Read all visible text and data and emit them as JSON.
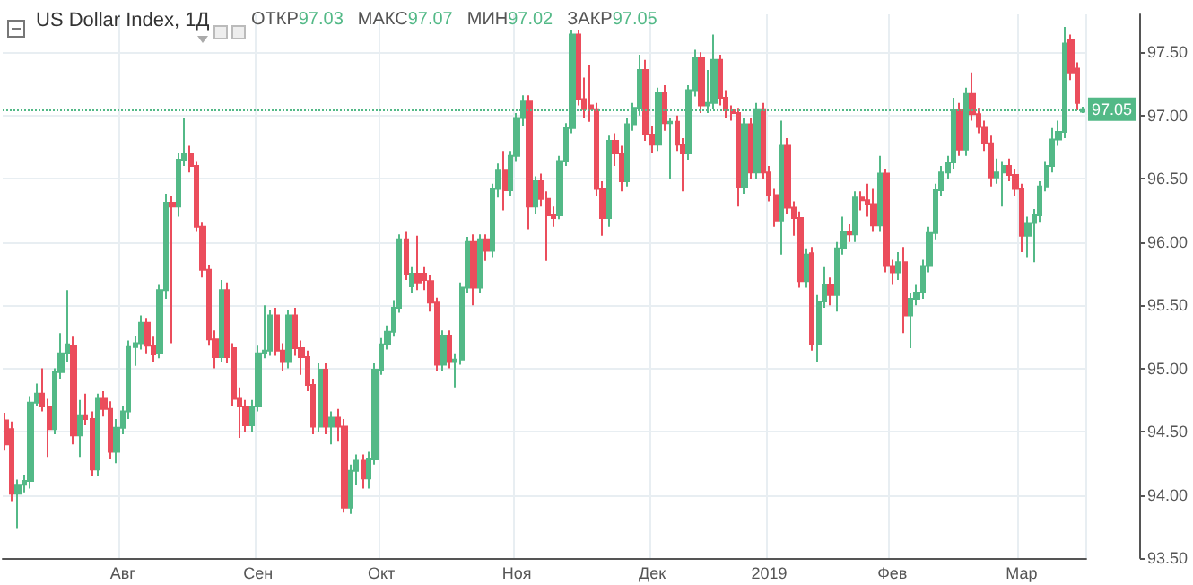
{
  "chart_data": {
    "type": "candlestick",
    "title": "US Dollar Index, 1Д",
    "annotations": [
      "ОТКР",
      "97.03",
      "МАКС",
      "97.07",
      "МИН",
      "97.02",
      "ЗАКР",
      "97.05"
    ],
    "categories": [
      null,
      null,
      null,
      null,
      null,
      null,
      null,
      null,
      null,
      null,
      null,
      null,
      null,
      null,
      null,
      null,
      null,
      null,
      null,
      "Авг",
      null,
      null,
      null,
      null,
      null,
      null,
      null,
      null,
      null,
      null,
      null,
      null,
      null,
      null,
      null,
      null,
      null,
      null,
      null,
      null,
      null,
      "Сен",
      null,
      null,
      null,
      null,
      null,
      null,
      null,
      null,
      null,
      null,
      null,
      null,
      null,
      null,
      null,
      null,
      null,
      null,
      null,
      "Окт",
      null,
      null,
      null,
      null,
      null,
      null,
      null,
      null,
      null,
      null,
      null,
      null,
      null,
      null,
      null,
      null,
      null,
      null,
      null,
      null,
      null,
      "Ноя",
      null,
      null,
      null,
      null,
      null,
      null,
      null,
      null,
      null,
      null,
      null,
      null,
      null,
      null,
      null,
      null,
      null,
      null,
      null,
      null,
      null,
      "Дек",
      null,
      null,
      null,
      null,
      null,
      null,
      null,
      null,
      null,
      null,
      null,
      null,
      null,
      null,
      null,
      null,
      null,
      null,
      "2019",
      null,
      null,
      null,
      null,
      null,
      null,
      null,
      null,
      null,
      null,
      null,
      null,
      null,
      null,
      null,
      null,
      null,
      null,
      null,
      "Фев",
      null,
      null,
      null,
      null,
      null,
      null,
      null,
      null,
      null,
      null,
      null,
      null,
      null,
      null,
      null,
      null,
      null,
      null,
      null,
      null,
      "Мар",
      null,
      null,
      null,
      null,
      null,
      null,
      null,
      null,
      null,
      null
    ],
    "colors": [
      "#eb4d5c",
      "#eb4d5c",
      "#53b987",
      "#53b987",
      "#53b987",
      "#53b987",
      "#eb4d5c",
      "#eb4d5c",
      "#53b987",
      "#53b987",
      "#53b987",
      "#eb4d5c",
      "#53b987",
      "#eb4d5c",
      "#eb4d5c",
      "#53b987",
      "#eb4d5c",
      "#eb4d5c",
      "#53b987",
      "#53b987",
      "#53b987",
      "#53b987",
      "#53b987",
      "#eb4d5c",
      "#eb4d5c",
      "#53b987",
      "#53b987",
      "#eb4d5c",
      "#53b987",
      "#53b987",
      "#eb4d5c",
      "#eb4d5c",
      "#eb4d5c",
      "#eb4d5c",
      "#eb4d5c",
      "#53b987",
      "#eb4d5c",
      "#eb4d5c",
      "#eb4d5c",
      "#eb4d5c",
      "#53b987",
      "#53b987",
      "#53b987",
      "#53b987",
      "#eb4d5c",
      "#eb4d5c",
      "#53b987",
      "#eb4d5c",
      "#eb4d5c",
      "#eb4d5c",
      "#eb4d5c",
      "#53b987",
      "#eb4d5c",
      "#53b987",
      "#eb4d5c",
      "#eb4d5c",
      "#53b987",
      "#53b987",
      "#eb4d5c",
      "#53b987",
      "#53b987",
      "#53b987",
      "#53b987",
      "#53b987",
      "#53b987",
      "#eb4d5c",
      "#53b987",
      "#eb4d5c",
      "#eb4d5c",
      "#eb4d5c",
      "#eb4d5c",
      "#53b987",
      "#eb4d5c",
      "#53b987",
      "#53b987",
      "#53b987",
      "#eb4d5c",
      "#53b987",
      "#eb4d5c",
      "#53b987",
      "#53b987",
      "#eb4d5c",
      "#53b987",
      "#53b987",
      "#53b987",
      "#eb4d5c",
      "#53b987",
      "#eb4d5c",
      "#eb4d5c",
      "#eb4d5c",
      "#53b987",
      "#53b987",
      "#53b987",
      "#eb4d5c",
      "#eb4d5c",
      "#eb4d5c",
      "#eb4d5c",
      "#eb4d5c",
      "#53b987",
      "#eb4d5c",
      "#eb4d5c",
      "#53b987",
      "#53b987",
      "#53b987",
      "#eb4d5c",
      "#eb4d5c",
      "#53b987",
      "#eb4d5c",
      "#53b987",
      "#eb4d5c",
      "#eb4d5c",
      "#53b987",
      "#53b987",
      "#eb4d5c",
      "#53b987",
      "#53b987",
      "#eb4d5c",
      "#eb4d5c",
      "#eb4d5c",
      "#eb4d5c",
      "#53b987",
      "#eb4d5c",
      "#53b987",
      "#eb4d5c",
      "#eb4d5c",
      "#eb4d5c",
      "#53b987",
      "#eb4d5c",
      "#eb4d5c",
      "#eb4d5c",
      "#53b987",
      "#eb4d5c",
      "#53b987",
      "#53b987",
      "#eb4d5c",
      "#53b987",
      "#53b987",
      "#eb4d5c",
      "#53b987",
      "#eb4d5c",
      "#eb4d5c",
      "#eb4d5c",
      "#53b987",
      "#eb4d5c",
      "#eb4d5c",
      "#53b987",
      "#eb4d5c",
      "#53b987",
      "#53b987",
      "#53b987",
      "#53b987",
      "#53b987",
      "#53b987",
      "#53b987",
      "#53b987",
      "#eb4d5c",
      "#53b987",
      "#eb4d5c",
      "#eb4d5c",
      "#eb4d5c",
      "#eb4d5c",
      "#53b987",
      "#53b987",
      "#eb4d5c",
      "#eb4d5c",
      "#eb4d5c",
      "#53b987",
      "#53b987",
      "#53b987",
      "#53b987",
      "#53b987",
      "#53b987",
      "#53b987",
      "#eb4d5c",
      "#eb4d5c",
      "#53b987"
    ],
    "ohlc": [
      [
        94.59,
        94.65,
        94.35,
        94.4
      ],
      [
        94.52,
        94.58,
        93.95,
        94.01
      ],
      [
        94.01,
        94.12,
        93.73,
        94.08
      ],
      [
        94.08,
        94.16,
        94.02,
        94.11
      ],
      [
        94.11,
        94.78,
        94.05,
        94.73
      ],
      [
        94.73,
        94.88,
        94.7,
        94.8
      ],
      [
        94.8,
        95.0,
        94.66,
        94.7
      ],
      [
        94.7,
        94.76,
        94.3,
        94.52
      ],
      [
        94.52,
        95.0,
        94.48,
        94.97
      ],
      [
        94.97,
        95.28,
        94.92,
        95.12
      ],
      [
        95.12,
        95.62,
        95.05,
        95.19
      ],
      [
        95.18,
        95.25,
        94.4,
        94.47
      ],
      [
        94.47,
        94.75,
        94.3,
        94.63
      ],
      [
        94.63,
        94.8,
        94.55,
        94.6
      ],
      [
        94.6,
        94.66,
        94.15,
        94.2
      ],
      [
        94.2,
        94.8,
        94.15,
        94.76
      ],
      [
        94.76,
        94.82,
        94.62,
        94.68
      ],
      [
        94.68,
        94.74,
        94.28,
        94.34
      ],
      [
        94.34,
        94.6,
        94.25,
        94.53
      ],
      [
        94.53,
        94.7,
        94.48,
        94.66
      ],
      [
        94.66,
        95.22,
        94.6,
        95.17
      ],
      [
        95.17,
        95.26,
        95.02,
        95.2
      ],
      [
        95.2,
        95.42,
        95.15,
        95.36
      ],
      [
        95.36,
        95.4,
        95.12,
        95.18
      ],
      [
        95.18,
        95.25,
        95.05,
        95.11
      ],
      [
        95.12,
        95.66,
        95.08,
        95.62
      ],
      [
        95.62,
        96.38,
        95.55,
        96.31
      ],
      [
        96.31,
        96.36,
        95.2,
        96.28
      ],
      [
        96.28,
        96.7,
        96.2,
        96.65
      ],
      [
        96.65,
        96.98,
        96.6,
        96.7
      ],
      [
        96.7,
        96.76,
        96.55,
        96.6
      ],
      [
        96.6,
        96.64,
        96.08,
        96.12
      ],
      [
        96.12,
        96.16,
        95.72,
        95.78
      ],
      [
        95.78,
        95.82,
        95.18,
        95.23
      ],
      [
        95.23,
        95.3,
        95.0,
        95.09
      ],
      [
        95.09,
        95.7,
        95.05,
        95.62
      ],
      [
        95.62,
        95.68,
        95.04,
        95.09
      ],
      [
        95.16,
        95.2,
        94.7,
        94.76
      ],
      [
        94.76,
        94.85,
        94.45,
        94.7
      ],
      [
        94.7,
        94.75,
        94.5,
        94.55
      ],
      [
        94.55,
        94.75,
        94.5,
        94.7
      ],
      [
        94.7,
        95.18,
        94.66,
        95.12
      ],
      [
        95.12,
        95.5,
        95.08,
        95.14
      ],
      [
        95.14,
        95.46,
        95.1,
        95.42
      ],
      [
        95.42,
        95.48,
        95.1,
        95.14
      ],
      [
        95.14,
        95.2,
        94.98,
        95.05
      ],
      [
        95.05,
        95.46,
        95.0,
        95.42
      ],
      [
        95.42,
        95.48,
        95.1,
        95.16
      ],
      [
        95.16,
        95.22,
        94.95,
        95.09
      ],
      [
        95.09,
        95.14,
        94.82,
        94.87
      ],
      [
        94.87,
        94.92,
        94.48,
        94.54
      ],
      [
        94.54,
        95.04,
        94.5,
        94.99
      ],
      [
        94.99,
        95.04,
        94.48,
        94.54
      ],
      [
        94.54,
        94.66,
        94.4,
        94.61
      ],
      [
        94.61,
        94.68,
        94.42,
        94.54
      ],
      [
        94.54,
        94.6,
        93.86,
        93.9
      ],
      [
        93.9,
        94.24,
        93.85,
        94.19
      ],
      [
        94.19,
        94.32,
        94.08,
        94.27
      ],
      [
        94.27,
        94.32,
        94.05,
        94.13
      ],
      [
        94.13,
        94.34,
        94.05,
        94.28
      ],
      [
        94.28,
        95.04,
        94.24,
        94.99
      ],
      [
        94.99,
        95.24,
        94.95,
        95.19
      ],
      [
        95.19,
        95.34,
        95.15,
        95.29
      ],
      [
        95.29,
        95.54,
        95.25,
        95.48
      ],
      [
        95.48,
        96.06,
        95.44,
        96.02
      ],
      [
        96.02,
        96.08,
        95.7,
        95.75
      ],
      [
        95.65,
        95.8,
        95.6,
        95.75
      ],
      [
        95.75,
        96.05,
        95.62,
        95.68
      ],
      [
        95.75,
        95.8,
        95.62,
        95.7
      ],
      [
        95.69,
        95.74,
        95.45,
        95.52
      ],
      [
        95.52,
        95.56,
        94.98,
        95.03
      ],
      [
        95.03,
        95.3,
        94.98,
        95.26
      ],
      [
        95.26,
        95.3,
        95.0,
        95.05
      ],
      [
        95.05,
        95.12,
        94.85,
        95.07
      ],
      [
        95.07,
        95.68,
        95.03,
        95.64
      ],
      [
        95.64,
        96.04,
        95.6,
        96.0
      ],
      [
        96.0,
        96.06,
        95.5,
        95.64
      ],
      [
        95.64,
        96.06,
        95.6,
        96.02
      ],
      [
        96.02,
        96.06,
        95.85,
        95.93
      ],
      [
        95.93,
        96.46,
        95.88,
        96.42
      ],
      [
        96.42,
        96.62,
        96.35,
        96.57
      ],
      [
        96.57,
        96.72,
        96.25,
        96.41
      ],
      [
        96.41,
        96.72,
        96.36,
        96.68
      ],
      [
        96.68,
        97.02,
        96.64,
        96.98
      ],
      [
        96.98,
        97.16,
        96.92,
        97.11
      ],
      [
        97.11,
        97.16,
        96.1,
        96.28
      ],
      [
        96.28,
        96.52,
        96.22,
        96.48
      ],
      [
        96.48,
        96.54,
        96.28,
        96.34
      ],
      [
        96.34,
        96.4,
        95.85,
        96.21
      ],
      [
        96.21,
        96.28,
        96.12,
        96.19
      ],
      [
        96.21,
        96.68,
        96.18,
        96.64
      ],
      [
        96.64,
        96.94,
        96.6,
        96.9
      ],
      [
        96.9,
        97.68,
        96.86,
        97.64
      ],
      [
        97.64,
        97.68,
        97.08,
        97.13
      ],
      [
        97.13,
        97.3,
        96.98,
        97.05
      ],
      [
        97.08,
        97.4,
        96.95,
        97.05
      ],
      [
        97.05,
        97.1,
        96.36,
        96.42
      ],
      [
        96.42,
        96.48,
        96.05,
        96.19
      ],
      [
        96.19,
        96.84,
        96.12,
        96.8
      ],
      [
        96.8,
        96.86,
        96.6,
        96.7
      ],
      [
        96.7,
        96.76,
        96.4,
        96.48
      ],
      [
        96.48,
        96.98,
        96.44,
        96.93
      ],
      [
        96.93,
        97.1,
        96.88,
        97.06
      ],
      [
        97.06,
        97.48,
        97.0,
        97.36
      ],
      [
        97.36,
        97.44,
        96.8,
        96.85
      ],
      [
        96.85,
        96.92,
        96.7,
        96.77
      ],
      [
        96.77,
        97.22,
        96.72,
        97.18
      ],
      [
        97.18,
        97.24,
        96.88,
        96.94
      ],
      [
        96.94,
        96.98,
        96.5,
        96.95
      ],
      [
        96.95,
        97.0,
        96.72,
        96.77
      ],
      [
        96.77,
        96.82,
        96.4,
        96.7
      ],
      [
        96.7,
        97.24,
        96.65,
        97.2
      ],
      [
        97.2,
        97.52,
        97.15,
        97.46
      ],
      [
        97.46,
        97.5,
        97.02,
        97.08
      ],
      [
        97.08,
        97.36,
        97.02,
        97.1
      ],
      [
        97.1,
        97.64,
        97.05,
        97.44
      ],
      [
        97.44,
        97.48,
        97.08,
        97.14
      ],
      [
        97.14,
        97.2,
        96.98,
        97.04
      ],
      [
        97.04,
        97.08,
        96.96,
        97.02
      ],
      [
        97.02,
        97.06,
        96.28,
        96.43
      ],
      [
        96.43,
        96.98,
        96.38,
        96.93
      ],
      [
        96.93,
        96.98,
        96.5,
        96.55
      ],
      [
        96.55,
        97.1,
        96.5,
        97.05
      ],
      [
        97.05,
        97.1,
        96.5,
        96.55
      ],
      [
        96.55,
        96.6,
        96.32,
        96.37
      ],
      [
        96.37,
        96.42,
        96.12,
        96.17
      ],
      [
        96.17,
        96.96,
        95.9,
        96.76
      ],
      [
        96.76,
        96.82,
        96.22,
        96.27
      ],
      [
        96.27,
        96.32,
        96.05,
        96.19
      ],
      [
        96.19,
        96.24,
        95.64,
        95.69
      ],
      [
        95.69,
        95.95,
        95.64,
        95.9
      ],
      [
        95.91,
        95.96,
        95.14,
        95.19
      ],
      [
        95.19,
        95.58,
        95.05,
        95.53
      ],
      [
        95.53,
        95.8,
        95.48,
        95.66
      ],
      [
        95.66,
        95.72,
        95.5,
        95.58
      ],
      [
        95.58,
        96.0,
        95.45,
        95.95
      ],
      [
        95.95,
        96.2,
        95.9,
        96.08
      ],
      [
        96.08,
        96.14,
        96.0,
        96.06
      ],
      [
        96.06,
        96.4,
        96.0,
        96.35
      ],
      [
        96.35,
        96.4,
        96.25,
        96.33
      ],
      [
        96.33,
        96.46,
        96.2,
        96.3
      ],
      [
        96.3,
        96.42,
        96.08,
        96.13
      ],
      [
        96.13,
        96.68,
        96.08,
        96.54
      ],
      [
        96.54,
        96.58,
        95.76,
        95.81
      ],
      [
        95.81,
        95.86,
        95.66,
        95.76
      ],
      [
        95.76,
        95.92,
        95.7,
        95.84
      ],
      [
        95.84,
        95.96,
        95.28,
        95.42
      ],
      [
        95.42,
        95.6,
        95.16,
        95.55
      ],
      [
        95.55,
        95.66,
        95.5,
        95.6
      ],
      [
        95.6,
        95.86,
        95.55,
        95.81
      ],
      [
        95.81,
        96.12,
        95.76,
        96.07
      ],
      [
        96.07,
        96.46,
        96.02,
        96.41
      ],
      [
        96.41,
        96.6,
        96.36,
        96.55
      ],
      [
        96.55,
        96.68,
        96.5,
        96.63
      ],
      [
        96.63,
        97.14,
        96.58,
        97.04
      ],
      [
        97.04,
        97.1,
        96.68,
        96.73
      ],
      [
        96.73,
        97.22,
        96.68,
        97.17
      ],
      [
        97.17,
        97.34,
        96.96,
        97.01
      ],
      [
        97.01,
        97.06,
        96.86,
        96.91
      ],
      [
        96.91,
        96.96,
        96.72,
        96.78
      ],
      [
        96.78,
        96.84,
        96.44,
        96.51
      ],
      [
        96.51,
        96.66,
        96.46,
        96.55
      ],
      [
        96.55,
        96.64,
        96.28,
        96.6
      ],
      [
        96.6,
        96.66,
        96.48,
        96.53
      ],
      [
        96.53,
        96.58,
        96.36,
        96.42
      ],
      [
        96.42,
        96.46,
        95.92,
        96.05
      ],
      [
        96.05,
        96.2,
        95.88,
        96.15
      ],
      [
        96.15,
        96.26,
        95.84,
        96.21
      ],
      [
        96.21,
        96.48,
        96.16,
        96.44
      ],
      [
        96.44,
        96.64,
        96.4,
        96.6
      ],
      [
        96.6,
        96.9,
        96.55,
        96.81
      ],
      [
        96.81,
        96.96,
        96.76,
        96.87
      ],
      [
        96.87,
        97.7,
        96.82,
        97.57
      ],
      [
        97.6,
        97.64,
        97.28,
        97.34
      ],
      [
        97.37,
        97.42,
        97.04,
        97.1
      ],
      [
        97.03,
        97.07,
        97.02,
        97.05
      ]
    ],
    "ylim": [
      93.5,
      97.8
    ],
    "yticks": [
      {
        "value": 93.5,
        "label": "93.50"
      },
      {
        "value": 94,
        "label": "94.00"
      },
      {
        "value": 94.5,
        "label": "94.50"
      },
      {
        "value": 95,
        "label": "95.00"
      },
      {
        "value": 95.5,
        "label": "95.50"
      },
      {
        "value": 96,
        "label": "96.00"
      },
      {
        "value": 96.5,
        "label": "96.50"
      },
      {
        "value": 97,
        "label": "97.00"
      },
      {
        "value": 97.5,
        "label": "97.50"
      }
    ],
    "ref_lines": [
      {
        "axis": "y",
        "value": 97.05,
        "label": "97.05",
        "color": "#53b987",
        "line_style": "dotted"
      }
    ],
    "grid": true
  }
}
